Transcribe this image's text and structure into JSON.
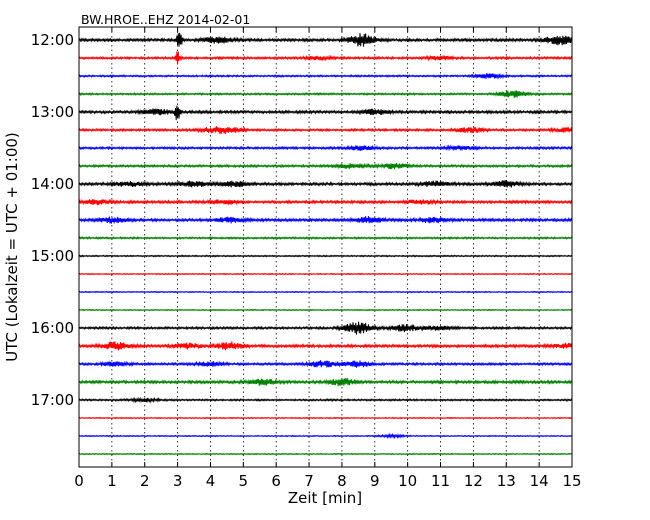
{
  "chart_data": {
    "type": "line",
    "title": "BW.HROE..EHZ 2014-02-01",
    "xlabel": "Zeit  [min]",
    "ylabel": "UTC (Lokalzeit = UTC + 01:00)",
    "xlim": [
      0,
      15
    ],
    "xticks": [
      "0",
      "1",
      "2",
      "3",
      "4",
      "5",
      "6",
      "7",
      "8",
      "9",
      "10",
      "11",
      "12",
      "13",
      "14",
      "15"
    ],
    "ytick_labels": [
      "12:00",
      "13:00",
      "14:00",
      "15:00",
      "16:00",
      "17:00"
    ],
    "grid": "vertical-dotted",
    "trace_colors": [
      "#000000",
      "#ff0000",
      "#0000ff",
      "#008000"
    ],
    "traces": [
      {
        "start": "12:00",
        "color": "#000000",
        "level": 0.3,
        "bursts": [
          [
            3.05,
            3.0
          ],
          [
            4.2,
            0.8
          ],
          [
            8.6,
            1.5
          ],
          [
            14.6,
            1.1
          ]
        ]
      },
      {
        "start": "12:15",
        "color": "#ff0000",
        "level": 0.25,
        "bursts": [
          [
            3.0,
            1.6
          ],
          [
            7.3,
            0.4
          ],
          [
            11.0,
            0.4
          ]
        ]
      },
      {
        "start": "12:30",
        "color": "#0000ff",
        "level": 0.2,
        "bursts": [
          [
            12.5,
            0.6
          ]
        ]
      },
      {
        "start": "12:45",
        "color": "#008000",
        "level": 0.2,
        "bursts": [
          [
            13.2,
            0.8
          ]
        ]
      },
      {
        "start": "13:00",
        "color": "#000000",
        "level": 0.3,
        "bursts": [
          [
            2.4,
            0.7
          ],
          [
            3.0,
            2.5
          ],
          [
            9.0,
            0.6
          ]
        ]
      },
      {
        "start": "13:15",
        "color": "#ff0000",
        "level": 0.25,
        "bursts": [
          [
            4.1,
            0.6
          ],
          [
            4.6,
            0.5
          ],
          [
            11.9,
            0.6
          ],
          [
            14.9,
            0.5
          ]
        ]
      },
      {
        "start": "13:30",
        "color": "#0000ff",
        "level": 0.25,
        "bursts": [
          [
            8.6,
            0.5
          ],
          [
            11.6,
            0.4
          ]
        ]
      },
      {
        "start": "13:45",
        "color": "#008000",
        "level": 0.25,
        "bursts": [
          [
            8.3,
            0.6
          ],
          [
            9.6,
            0.6
          ]
        ]
      },
      {
        "start": "14:00",
        "color": "#000000",
        "level": 0.3,
        "bursts": [
          [
            1.5,
            0.6
          ],
          [
            3.5,
            0.6
          ],
          [
            4.7,
            0.6
          ],
          [
            10.8,
            0.6
          ],
          [
            13.0,
            0.7
          ]
        ]
      },
      {
        "start": "14:15",
        "color": "#ff0000",
        "level": 0.3,
        "bursts": [
          [
            0.5,
            0.5
          ],
          [
            4.4,
            0.5
          ],
          [
            10.4,
            0.5
          ]
        ]
      },
      {
        "start": "14:30",
        "color": "#0000ff",
        "level": 0.3,
        "bursts": [
          [
            1.0,
            0.6
          ],
          [
            4.6,
            0.6
          ],
          [
            8.8,
            0.7
          ],
          [
            10.8,
            0.6
          ]
        ]
      },
      {
        "start": "14:45",
        "color": "#008000",
        "level": 0.2,
        "bursts": []
      },
      {
        "start": "15:00",
        "color": "#000000",
        "level": 0.15,
        "bursts": []
      },
      {
        "start": "15:15",
        "color": "#ff0000",
        "level": 0.12,
        "bursts": []
      },
      {
        "start": "15:30",
        "color": "#0000ff",
        "level": 0.12,
        "bursts": []
      },
      {
        "start": "15:45",
        "color": "#008000",
        "level": 0.12,
        "bursts": []
      },
      {
        "start": "16:00",
        "color": "#000000",
        "level": 0.25,
        "bursts": [
          [
            8.5,
            1.5
          ],
          [
            9.9,
            0.9
          ],
          [
            10.9,
            0.5
          ]
        ]
      },
      {
        "start": "16:15",
        "color": "#ff0000",
        "level": 0.3,
        "bursts": [
          [
            1.1,
            0.9
          ],
          [
            3.3,
            0.6
          ],
          [
            4.6,
            0.9
          ],
          [
            14.8,
            0.5
          ]
        ]
      },
      {
        "start": "16:30",
        "color": "#0000ff",
        "level": 0.25,
        "bursts": [
          [
            1.1,
            0.5
          ],
          [
            4.0,
            0.5
          ],
          [
            7.4,
            0.8
          ],
          [
            8.5,
            0.7
          ]
        ]
      },
      {
        "start": "16:45",
        "color": "#008000",
        "level": 0.3,
        "bursts": [
          [
            5.6,
            0.7
          ],
          [
            8.0,
            0.8
          ]
        ]
      },
      {
        "start": "17:00",
        "color": "#000000",
        "level": 0.2,
        "bursts": [
          [
            2.0,
            0.4
          ]
        ]
      },
      {
        "start": "17:15",
        "color": "#ff0000",
        "level": 0.12,
        "bursts": []
      },
      {
        "start": "17:30",
        "color": "#0000ff",
        "level": 0.12,
        "bursts": [
          [
            9.5,
            0.3
          ]
        ]
      },
      {
        "start": "17:45",
        "color": "#008000",
        "level": 0.12,
        "bursts": []
      }
    ]
  }
}
